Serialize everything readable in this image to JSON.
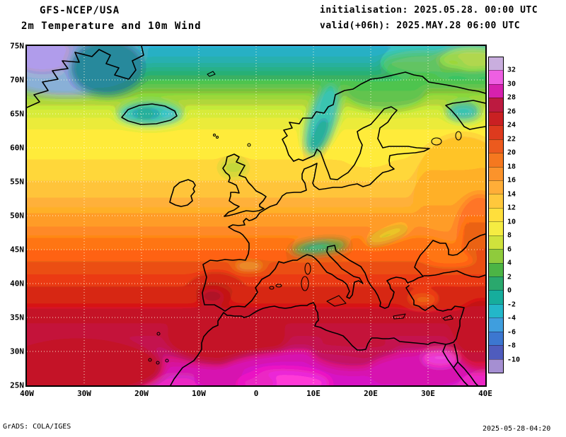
{
  "header": {
    "model": "GFS-NCEP/USA",
    "subtitle": "2m Temperature and 10m Wind",
    "init_label": "initialisation: 2025.05.28. 00:00 UTC",
    "valid_label": "valid(+06h): 2025.MAY.28 06:00 UTC"
  },
  "footer": {
    "credit": "GrADS: COLA/IGES",
    "timestamp": "2025-05-28-04:20"
  },
  "chart_data": {
    "type": "heatmap",
    "title": "2m Temperature and 10m Wind",
    "model": "GFS-NCEP/USA",
    "projection": "latlon",
    "region": "Europe / North Atlantic / North Africa",
    "x": {
      "label": "longitude",
      "ticks": [
        "40W",
        "30W",
        "20W",
        "10W",
        "0",
        "10E",
        "20E",
        "30E",
        "40E"
      ]
    },
    "y": {
      "label": "latitude",
      "ticks": [
        "75N",
        "70N",
        "65N",
        "60N",
        "55N",
        "50N",
        "45N",
        "40N",
        "35N",
        "30N",
        "25N"
      ]
    },
    "grid": true,
    "colorbar": {
      "unit": "degC",
      "levels": [
        32,
        30,
        28,
        26,
        24,
        22,
        20,
        18,
        16,
        14,
        12,
        10,
        8,
        6,
        4,
        2,
        0,
        -2,
        -4,
        -6,
        -8,
        -10
      ],
      "colors_top_to_bottom": [
        "#c9aede",
        "#ee5fe2",
        "#d621ae",
        "#bc1a40",
        "#c92023",
        "#dd3a1e",
        "#ec5a1e",
        "#f5781f",
        "#fb932b",
        "#ffae38",
        "#ffc83c",
        "#ffdf3c",
        "#f5ec42",
        "#cfe23c",
        "#8fcb3c",
        "#4cb445",
        "#2aa86d",
        "#16ad9c",
        "#23b7c9",
        "#3f9ede",
        "#3c77d0",
        "#4f5cbd",
        "#a58fd2"
      ]
    },
    "sample_values": [
      {
        "region": "Arctic Atlantic near 75N",
        "t2m_c": 0
      },
      {
        "region": "Greenland east coast",
        "t2m_c": -6
      },
      {
        "region": "Iceland",
        "t2m_c": 2
      },
      {
        "region": "Scandinavian mountains",
        "t2m_c": 0
      },
      {
        "region": "Scotland",
        "t2m_c": 8
      },
      {
        "region": "North Sea / Baltic",
        "t2m_c": 10
      },
      {
        "region": "Central Atlantic 55N",
        "t2m_c": 10
      },
      {
        "region": "France / Central Europe",
        "t2m_c": 14
      },
      {
        "region": "Alps",
        "t2m_c": 4
      },
      {
        "region": "Iberia interior",
        "t2m_c": 24
      },
      {
        "region": "Mediterranean Sea",
        "t2m_c": 20
      },
      {
        "region": "Anatolia",
        "t2m_c": 22
      },
      {
        "region": "North-west Africa coast",
        "t2m_c": 26
      },
      {
        "region": "Libya / Egypt",
        "t2m_c": 28
      },
      {
        "region": "Sahara hot core",
        "t2m_c": 32
      }
    ]
  }
}
